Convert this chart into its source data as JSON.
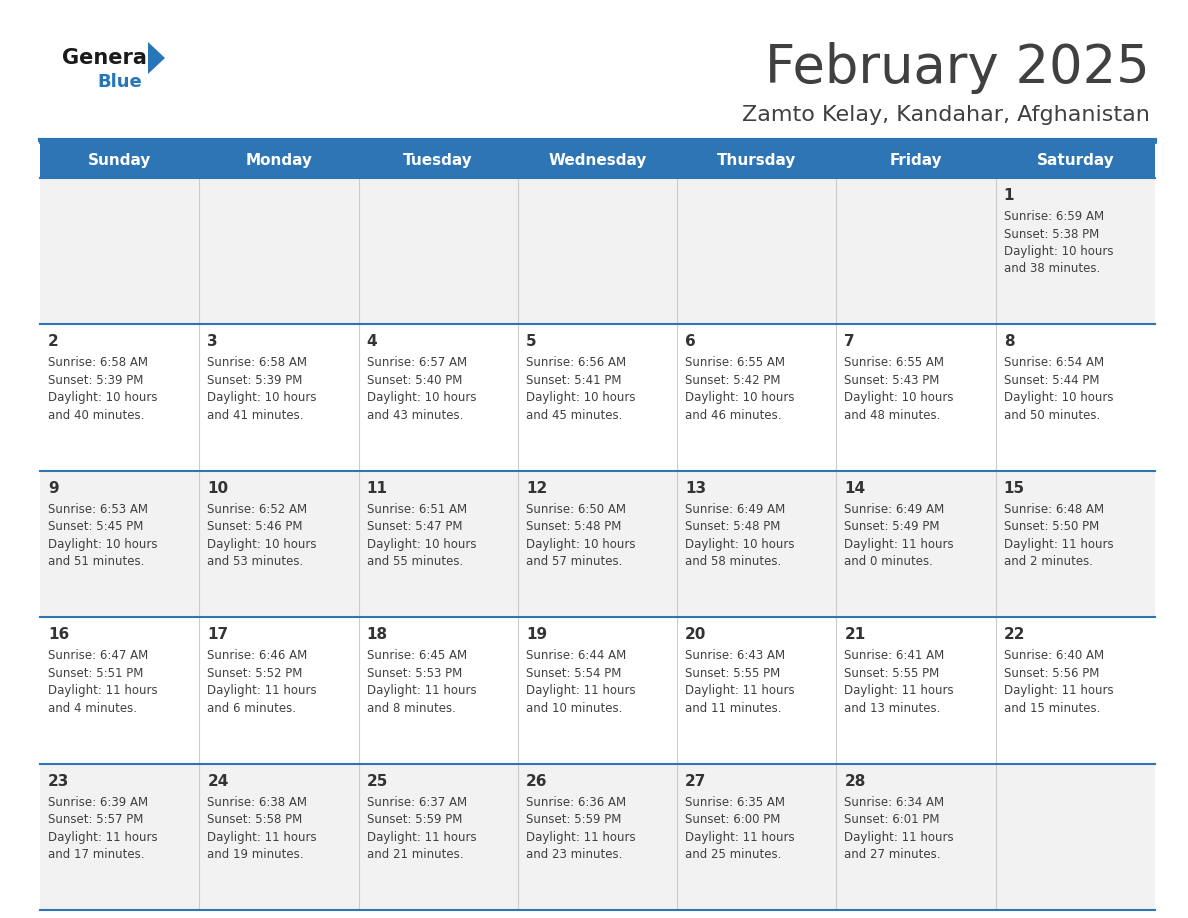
{
  "title": "February 2025",
  "subtitle": "Zamto Kelay, Kandahar, Afghanistan",
  "header_color": "#2E75B6",
  "header_text_color": "#FFFFFF",
  "header_days": [
    "Sunday",
    "Monday",
    "Tuesday",
    "Wednesday",
    "Thursday",
    "Friday",
    "Saturday"
  ],
  "bg_color": "#FFFFFF",
  "cell_bg_gray": "#F2F2F2",
  "cell_bg_white": "#FFFFFF",
  "separator_color": "#2E75B6",
  "text_color": "#404040",
  "day_num_color": "#333333",
  "logo_general_color": "#1a1a1a",
  "logo_blue_color": "#2777B8",
  "calendar": [
    [
      null,
      null,
      null,
      null,
      null,
      null,
      1
    ],
    [
      2,
      3,
      4,
      5,
      6,
      7,
      8
    ],
    [
      9,
      10,
      11,
      12,
      13,
      14,
      15
    ],
    [
      16,
      17,
      18,
      19,
      20,
      21,
      22
    ],
    [
      23,
      24,
      25,
      26,
      27,
      28,
      null
    ]
  ],
  "row_bg": [
    "gray",
    "white",
    "gray",
    "white",
    "gray"
  ],
  "day_data": {
    "1": {
      "sunrise": "6:59 AM",
      "sunset": "5:38 PM",
      "daylight_h": "10 hours",
      "daylight_m": "and 38 minutes."
    },
    "2": {
      "sunrise": "6:58 AM",
      "sunset": "5:39 PM",
      "daylight_h": "10 hours",
      "daylight_m": "and 40 minutes."
    },
    "3": {
      "sunrise": "6:58 AM",
      "sunset": "5:39 PM",
      "daylight_h": "10 hours",
      "daylight_m": "and 41 minutes."
    },
    "4": {
      "sunrise": "6:57 AM",
      "sunset": "5:40 PM",
      "daylight_h": "10 hours",
      "daylight_m": "and 43 minutes."
    },
    "5": {
      "sunrise": "6:56 AM",
      "sunset": "5:41 PM",
      "daylight_h": "10 hours",
      "daylight_m": "and 45 minutes."
    },
    "6": {
      "sunrise": "6:55 AM",
      "sunset": "5:42 PM",
      "daylight_h": "10 hours",
      "daylight_m": "and 46 minutes."
    },
    "7": {
      "sunrise": "6:55 AM",
      "sunset": "5:43 PM",
      "daylight_h": "10 hours",
      "daylight_m": "and 48 minutes."
    },
    "8": {
      "sunrise": "6:54 AM",
      "sunset": "5:44 PM",
      "daylight_h": "10 hours",
      "daylight_m": "and 50 minutes."
    },
    "9": {
      "sunrise": "6:53 AM",
      "sunset": "5:45 PM",
      "daylight_h": "10 hours",
      "daylight_m": "and 51 minutes."
    },
    "10": {
      "sunrise": "6:52 AM",
      "sunset": "5:46 PM",
      "daylight_h": "10 hours",
      "daylight_m": "and 53 minutes."
    },
    "11": {
      "sunrise": "6:51 AM",
      "sunset": "5:47 PM",
      "daylight_h": "10 hours",
      "daylight_m": "and 55 minutes."
    },
    "12": {
      "sunrise": "6:50 AM",
      "sunset": "5:48 PM",
      "daylight_h": "10 hours",
      "daylight_m": "and 57 minutes."
    },
    "13": {
      "sunrise": "6:49 AM",
      "sunset": "5:48 PM",
      "daylight_h": "10 hours",
      "daylight_m": "and 58 minutes."
    },
    "14": {
      "sunrise": "6:49 AM",
      "sunset": "5:49 PM",
      "daylight_h": "11 hours",
      "daylight_m": "and 0 minutes."
    },
    "15": {
      "sunrise": "6:48 AM",
      "sunset": "5:50 PM",
      "daylight_h": "11 hours",
      "daylight_m": "and 2 minutes."
    },
    "16": {
      "sunrise": "6:47 AM",
      "sunset": "5:51 PM",
      "daylight_h": "11 hours",
      "daylight_m": "and 4 minutes."
    },
    "17": {
      "sunrise": "6:46 AM",
      "sunset": "5:52 PM",
      "daylight_h": "11 hours",
      "daylight_m": "and 6 minutes."
    },
    "18": {
      "sunrise": "6:45 AM",
      "sunset": "5:53 PM",
      "daylight_h": "11 hours",
      "daylight_m": "and 8 minutes."
    },
    "19": {
      "sunrise": "6:44 AM",
      "sunset": "5:54 PM",
      "daylight_h": "11 hours",
      "daylight_m": "and 10 minutes."
    },
    "20": {
      "sunrise": "6:43 AM",
      "sunset": "5:55 PM",
      "daylight_h": "11 hours",
      "daylight_m": "and 11 minutes."
    },
    "21": {
      "sunrise": "6:41 AM",
      "sunset": "5:55 PM",
      "daylight_h": "11 hours",
      "daylight_m": "and 13 minutes."
    },
    "22": {
      "sunrise": "6:40 AM",
      "sunset": "5:56 PM",
      "daylight_h": "11 hours",
      "daylight_m": "and 15 minutes."
    },
    "23": {
      "sunrise": "6:39 AM",
      "sunset": "5:57 PM",
      "daylight_h": "11 hours",
      "daylight_m": "and 17 minutes."
    },
    "24": {
      "sunrise": "6:38 AM",
      "sunset": "5:58 PM",
      "daylight_h": "11 hours",
      "daylight_m": "and 19 minutes."
    },
    "25": {
      "sunrise": "6:37 AM",
      "sunset": "5:59 PM",
      "daylight_h": "11 hours",
      "daylight_m": "and 21 minutes."
    },
    "26": {
      "sunrise": "6:36 AM",
      "sunset": "5:59 PM",
      "daylight_h": "11 hours",
      "daylight_m": "and 23 minutes."
    },
    "27": {
      "sunrise": "6:35 AM",
      "sunset": "6:00 PM",
      "daylight_h": "11 hours",
      "daylight_m": "and 25 minutes."
    },
    "28": {
      "sunrise": "6:34 AM",
      "sunset": "6:01 PM",
      "daylight_h": "11 hours",
      "daylight_m": "and 27 minutes."
    }
  }
}
